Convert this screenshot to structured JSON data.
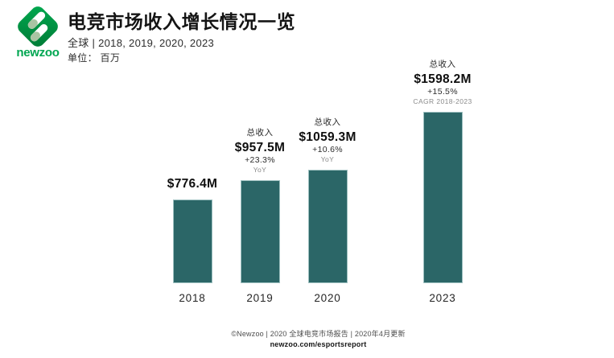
{
  "brand": {
    "logo_text": "newzoo",
    "logo_green": "#00a94f",
    "logo_dark_green": "#007a36",
    "leaf_top_color": "#ffffff",
    "leaf_bottom_color": "#a9c4a3"
  },
  "header": {
    "title": "电竞市场收入增长情况一览",
    "subtitle": "全球 | 2018, 2019, 2020, 2023",
    "unit_label": "单位： 百万"
  },
  "chart_data": {
    "type": "bar",
    "title": "电竞市场收入增长情况一览",
    "subtitle": "全球 | 2018, 2019, 2020, 2023",
    "unit": "百万",
    "categories": [
      "2018",
      "2019",
      "2020",
      "2023"
    ],
    "values": [
      776.4,
      957.5,
      1059.3,
      1598.2
    ],
    "bar_color": "#2b6667",
    "ylim": [
      0,
      1700
    ],
    "grid": false,
    "legend": false,
    "bars": [
      {
        "year": "2018",
        "value_label": "$776.4M"
      },
      {
        "year": "2019",
        "header": "总收入",
        "value_label": "$957.5M",
        "growth": "+23.3%",
        "note": "YoY"
      },
      {
        "year": "2020",
        "header": "总收入",
        "value_label": "$1059.3M",
        "growth": "+10.6%",
        "note": "YoY"
      },
      {
        "year": "2023",
        "header": "总收入",
        "value_label": "$1598.2M",
        "growth": "+15.5%",
        "note": "CAGR 2018-2023"
      }
    ]
  },
  "footer": {
    "credit": "©Newzoo | 2020 全球电竞市场报告 | 2020年4月更新",
    "link": "newzoo.com/esportsreport"
  }
}
